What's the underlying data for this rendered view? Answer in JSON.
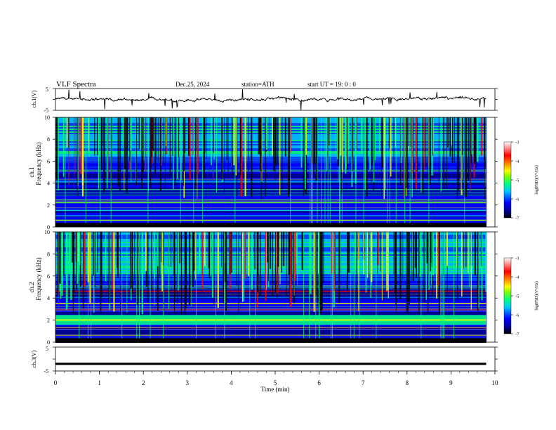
{
  "header": {
    "title": "VLF  Spectra",
    "date": "Dec.25, 2024",
    "station": "station=ATH",
    "start": "start  UT  =   19: 0  : 0"
  },
  "colors": {
    "scale": [
      "#000000",
      "#00008b",
      "#0000ff",
      "#0050ff",
      "#00c8ff",
      "#00ff80",
      "#80ff00",
      "#ffff00",
      "#ff8000",
      "#ff0000",
      "#ff9090",
      "#ffffff"
    ],
    "trace": "#000000"
  },
  "chart_data": [
    {
      "id": "ch1-waveform",
      "type": "line",
      "ylabel": "ch.1(V)",
      "ylim": [
        -5,
        5
      ],
      "yticks": [
        "5",
        "-5"
      ],
      "x_range_min": [
        0,
        9.8
      ],
      "trace_level": 0,
      "description_style": "noisy"
    },
    {
      "id": "ch1-spectrogram",
      "type": "heatmap",
      "ylabel": [
        "ch.1",
        "Frequency (kHz)"
      ],
      "ylim": [
        0,
        10
      ],
      "yticks": [
        "0",
        "2",
        "4",
        "6",
        "8",
        "10"
      ],
      "bands_khz": [
        0.6,
        1.0,
        1.5,
        2.2,
        3.4,
        4.1,
        5.1
      ],
      "colorbar": {
        "label": "log(PSD)(V²/Hz)",
        "ticks": [
          "-3",
          "-4",
          "-5",
          "-6",
          "-7"
        ],
        "range": [
          -7,
          -3
        ]
      }
    },
    {
      "id": "ch2-spectrogram",
      "type": "heatmap",
      "ylabel": [
        "ch.2",
        "Frequency (kHz)"
      ],
      "ylim": [
        0,
        10
      ],
      "yticks": [
        "0",
        "2",
        "4",
        "6",
        "8",
        "10"
      ],
      "bands_khz": [
        0.6,
        1.3,
        2.0,
        2.9,
        3.5,
        4.6
      ],
      "colorbar": {
        "label": "log(PSD)(V²/Hz)",
        "ticks": [
          "-3",
          "-4",
          "-5",
          "-6",
          "-7"
        ],
        "range": [
          -7,
          -3
        ]
      }
    },
    {
      "id": "ch3-waveform",
      "type": "line",
      "ylabel": "ch.3(V)",
      "ylim": [
        -5,
        5
      ],
      "yticks": [
        "5",
        "-5"
      ],
      "x_range_min": [
        0,
        9.8
      ],
      "trace_level": -2,
      "description_style": "flat"
    }
  ],
  "xaxis": {
    "label": "Time  (min)",
    "ticks": [
      "0",
      "1",
      "2",
      "3",
      "4",
      "5",
      "6",
      "7",
      "8",
      "9",
      "10"
    ],
    "range": [
      0,
      10
    ]
  }
}
